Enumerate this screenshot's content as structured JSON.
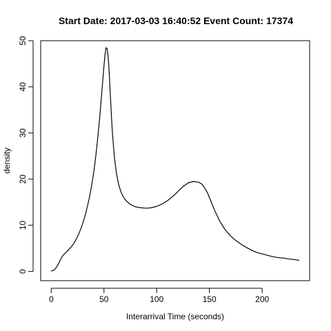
{
  "chart_data": {
    "type": "line",
    "title": "Start Date: 2017-03-03 16:40:52 Event Count: 17374",
    "xlabel": "Interarrival Time (seconds)",
    "ylabel": "density",
    "xlim": [
      -10,
      245
    ],
    "ylim": [
      -2,
      50
    ],
    "x_ticks": [
      0,
      50,
      100,
      150,
      200
    ],
    "y_ticks": [
      0,
      10,
      20,
      30,
      40,
      50
    ],
    "x_tick_labels": [
      "0",
      "50",
      "100",
      "150",
      "200"
    ],
    "y_tick_labels": [
      "0",
      "10",
      "20",
      "30",
      "40",
      "50"
    ],
    "grid": false,
    "series": [
      {
        "x": [
          0,
          2,
          4,
          6,
          8,
          10,
          12,
          14,
          16,
          18,
          20,
          22,
          24,
          26,
          28,
          30,
          32,
          34,
          36,
          38,
          40,
          42,
          44,
          46,
          48,
          50,
          51,
          52,
          53,
          54,
          55,
          56,
          57,
          58,
          60,
          62,
          64,
          66,
          68,
          70,
          72,
          74,
          76,
          78,
          80,
          85,
          90,
          95,
          100,
          105,
          110,
          115,
          120,
          125,
          130,
          135,
          140,
          143,
          145,
          148,
          150,
          155,
          160,
          165,
          170,
          175,
          180,
          185,
          190,
          195,
          200,
          205,
          210,
          215,
          220,
          225,
          230,
          235
        ],
        "y": [
          0.1,
          0.2,
          0.6,
          1.3,
          2.2,
          3.1,
          3.7,
          4.1,
          4.6,
          5.1,
          5.6,
          6.3,
          7.1,
          8.1,
          9.2,
          10.5,
          12.0,
          13.8,
          15.8,
          18.2,
          21.0,
          24.5,
          28.7,
          33.5,
          39.0,
          44.5,
          47.0,
          48.5,
          48.3,
          46.5,
          43.0,
          38.5,
          34.0,
          30.0,
          24.5,
          21.0,
          18.8,
          17.3,
          16.3,
          15.6,
          15.1,
          14.7,
          14.4,
          14.2,
          14.0,
          13.8,
          13.7,
          13.8,
          14.1,
          14.6,
          15.3,
          16.2,
          17.3,
          18.4,
          19.2,
          19.5,
          19.3,
          18.9,
          18.3,
          17.1,
          16.0,
          13.2,
          10.8,
          9.0,
          7.7,
          6.7,
          5.9,
          5.2,
          4.6,
          4.1,
          3.8,
          3.5,
          3.2,
          3.0,
          2.9,
          2.7,
          2.6,
          2.4
        ]
      }
    ]
  }
}
